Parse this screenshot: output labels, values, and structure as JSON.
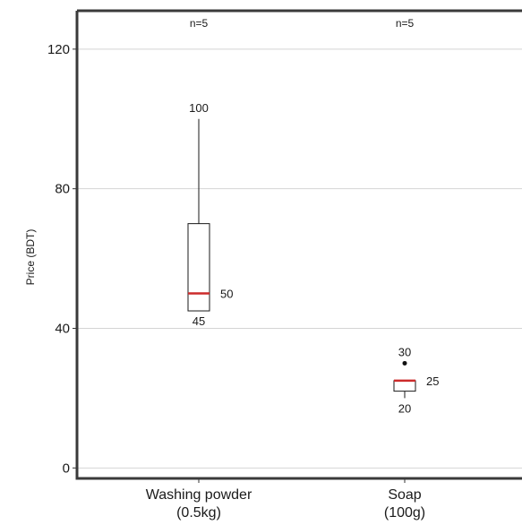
{
  "chart_data": {
    "type": "boxplot",
    "title": "",
    "xlabel": "",
    "ylabel": "Price (BDT)",
    "ylim": [
      -3,
      131
    ],
    "yticks": [
      0,
      40,
      80,
      120
    ],
    "grid": "horizontal",
    "categories": [
      "Washing powder\n(0.5kg)",
      "Soap\n(100g)"
    ],
    "boxes": [
      {
        "category": "Washing powder\n(0.5kg)",
        "n_label": "n=5",
        "whisker_low": 45,
        "q1": 45,
        "median": 50,
        "q3": 70,
        "whisker_high": 100,
        "outliers": [],
        "labels": [
          {
            "text": "100",
            "value": 100,
            "anchor": "top"
          },
          {
            "text": "50",
            "value": 50,
            "anchor": "right"
          },
          {
            "text": "45",
            "value": 45,
            "anchor": "bottom"
          }
        ]
      },
      {
        "category": "Soap\n(100g)",
        "n_label": "n=5",
        "whisker_low": 20,
        "q1": 22,
        "median": 25,
        "q3": 25,
        "whisker_high": 25,
        "outliers": [
          30
        ],
        "labels": [
          {
            "text": "30",
            "value": 30,
            "anchor": "top"
          },
          {
            "text": "25",
            "value": 25,
            "anchor": "right"
          },
          {
            "text": "20",
            "value": 20,
            "anchor": "bottom"
          }
        ]
      }
    ],
    "colors": {
      "median": "#cc2b2b",
      "box": "#1a1a1a",
      "grid": "#d4d4d4",
      "frame": "#3a3a3a"
    }
  }
}
